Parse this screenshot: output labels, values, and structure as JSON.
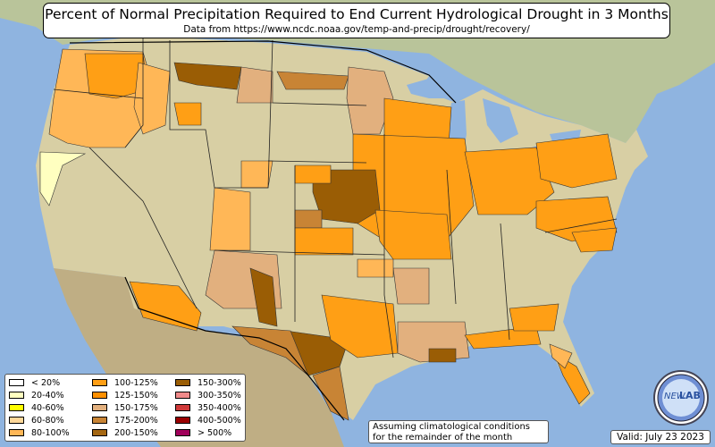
{
  "title": "Percent of Normal Precipitation Required to End Current Hydrological Drought in 3 Months",
  "subtitle": "Data from https://www.ncdc.noaa.gov/temp-and-precip/drought/recovery/",
  "legend": [
    {
      "label": "< 20%",
      "color": "#ffffff"
    },
    {
      "label": "20-40%",
      "color": "#ffffc0"
    },
    {
      "label": "40-60%",
      "color": "#ffff00"
    },
    {
      "label": "60-80%",
      "color": "#ffd89a"
    },
    {
      "label": "80-100%",
      "color": "#ffb757"
    },
    {
      "label": "100-125%",
      "color": "#ff9f15"
    },
    {
      "label": "125-150%",
      "color": "#ff9000"
    },
    {
      "label": "150-175%",
      "color": "#e2b07e"
    },
    {
      "label": "175-200%",
      "color": "#c88435"
    },
    {
      "label": "200-150%",
      "color": "#a56712"
    },
    {
      "label": "150-300%",
      "color": "#9a5d05"
    },
    {
      "label": "300-350%",
      "color": "#f08a8a"
    },
    {
      "label": "350-400%",
      "color": "#d03a3a"
    },
    {
      "label": "400-500%",
      "color": "#9a0000"
    },
    {
      "label": "> 500%",
      "color": "#a0005a"
    }
  ],
  "assumption_note": "Assuming climatological conditions for the remainder of the month",
  "assumption_lines": [
    "Assuming climatological conditions",
    "for the remainder of the month"
  ],
  "valid_date": "Valid: July 23 2023",
  "logo_text": "NEW LAB",
  "logo_parts": [
    "NEW",
    "LAB"
  ],
  "colors": {
    "ocean": "#8fb4e0",
    "land": "#d4cba0",
    "lake": "#8fb4e0",
    "forest": "#8fae78"
  }
}
